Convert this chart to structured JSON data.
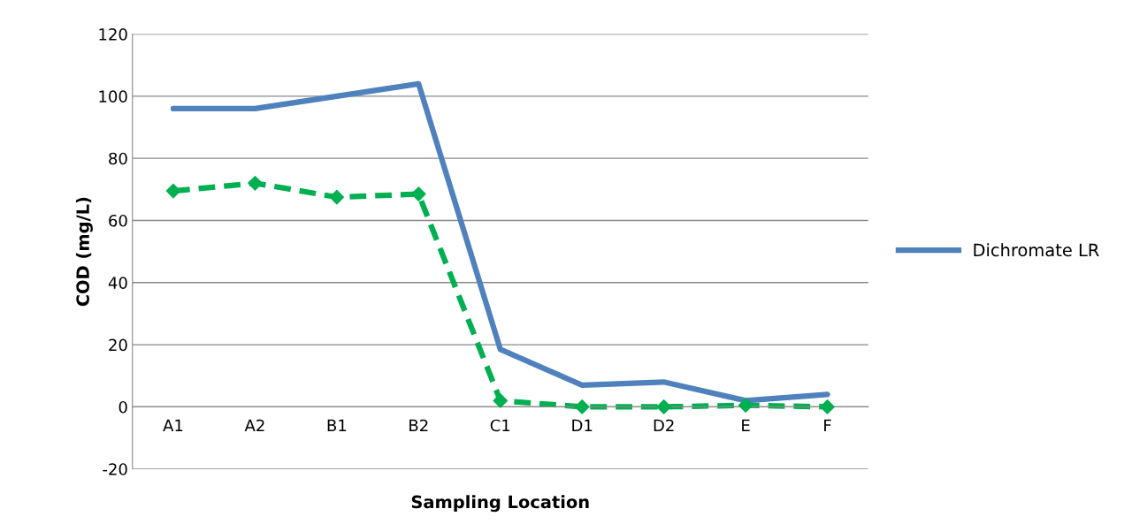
{
  "chart_data": {
    "type": "line",
    "xlabel": "Sampling Location",
    "ylabel": "COD (mg/L)",
    "categories": [
      "A1",
      "A2",
      "B1",
      "B2",
      "C1",
      "D1",
      "D2",
      "E",
      "F"
    ],
    "series": [
      {
        "color": "#00b050",
        "marker": "diamond",
        "line_style": "dashed",
        "values": [
          69.5,
          72,
          67.5,
          68.5,
          2,
          0,
          0,
          0.5,
          0
        ]
      },
      {
        "name": "Dichromate LR",
        "color": "#4f81bd",
        "marker": "none",
        "line_style": "solid",
        "values": [
          96,
          96,
          100,
          104,
          18.5,
          7,
          8,
          2,
          4
        ]
      }
    ],
    "ylim": [
      -20,
      120
    ],
    "yticks": [
      -20,
      0,
      20,
      40,
      60,
      80,
      100,
      120
    ],
    "grid": "y",
    "legend": "right"
  }
}
